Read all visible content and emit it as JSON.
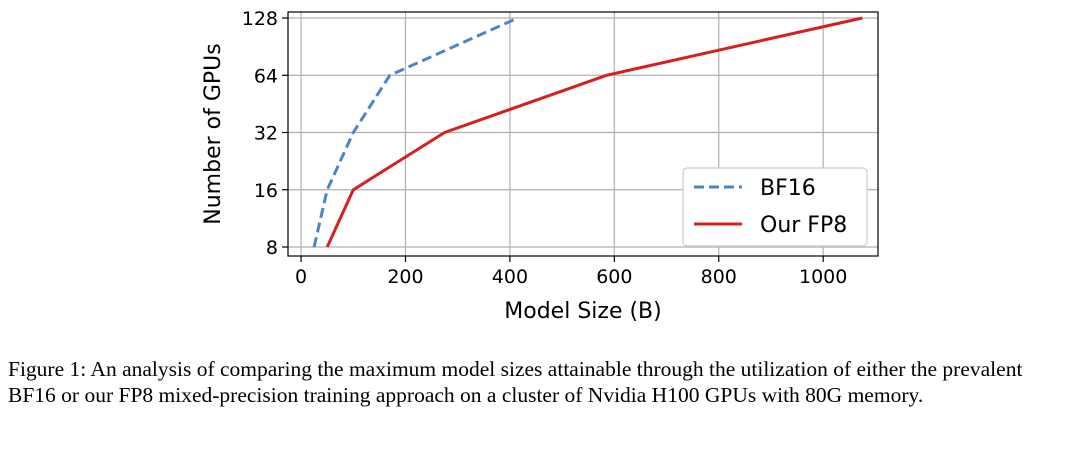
{
  "chart_data": {
    "type": "line",
    "title": "",
    "xlabel": "Model Size (B)",
    "ylabel": "Number of GPUs",
    "xlim": [
      -25,
      1105
    ],
    "ylim": [
      8,
      128
    ],
    "yscale": "log2",
    "x_ticks": [
      0,
      200,
      400,
      600,
      800,
      1000
    ],
    "y_ticks": [
      8,
      16,
      32,
      64,
      128
    ],
    "grid": true,
    "legend_position": "lower-right",
    "series": [
      {
        "name": "BF16",
        "color": "#4a86c5",
        "style": "dashed",
        "points": [
          [
            25,
            8
          ],
          [
            50,
            16
          ],
          [
            100,
            32
          ],
          [
            170,
            64
          ],
          [
            415,
            128
          ]
        ]
      },
      {
        "name": "Our FP8",
        "color": "#d62020",
        "style": "solid",
        "points": [
          [
            50,
            8
          ],
          [
            100,
            16
          ],
          [
            275,
            32
          ],
          [
            585,
            64
          ],
          [
            1075,
            128
          ]
        ]
      }
    ]
  },
  "caption": "Figure 1: An analysis of comparing the maximum model sizes attainable through the utilization of either the prevalent BF16 or our FP8 mixed-precision training approach on a cluster of Nvidia H100 GPUs with 80G memory."
}
